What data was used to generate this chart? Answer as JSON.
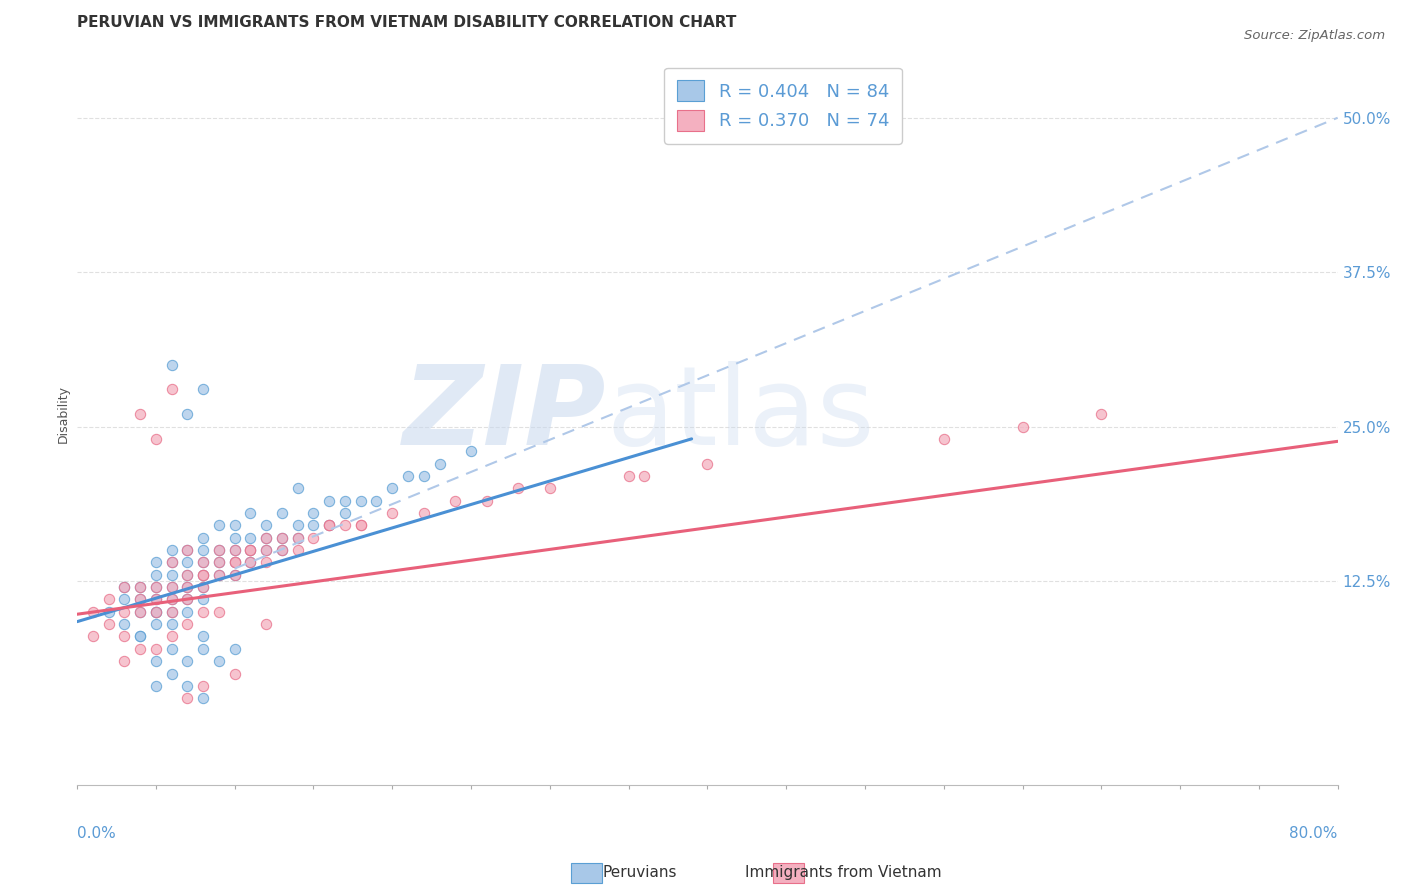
{
  "title": "PERUVIAN VS IMMIGRANTS FROM VIETNAM DISABILITY CORRELATION CHART",
  "source": "Source: ZipAtlas.com",
  "ylabel_label": "Disability",
  "yticks_vals": [
    0.125,
    0.25,
    0.375,
    0.5
  ],
  "ytick_labels": [
    "12.5%",
    "25.0%",
    "37.5%",
    "50.0%"
  ],
  "xmin": 0.0,
  "xmax": 0.8,
  "ymin": -0.04,
  "ymax": 0.56,
  "legend_blue_r": "R = 0.404",
  "legend_blue_n": "N = 84",
  "legend_pink_r": "R = 0.370",
  "legend_pink_n": "N = 74",
  "blue_color": "#a8c8e8",
  "pink_color": "#f4b0c0",
  "blue_edge_color": "#5a9fd4",
  "pink_edge_color": "#e8708a",
  "blue_line_color": "#4a90d4",
  "pink_line_color": "#e8607a",
  "dashed_line_color": "#b0c8e8",
  "watermark_zip_color": "#c8d8f0",
  "watermark_atlas_color": "#c8d8f0",
  "background_color": "#ffffff",
  "grid_color": "#e0e0e0",
  "title_fontsize": 11,
  "axis_color": "#5b9bd5",
  "tick_fontsize": 11,
  "blue_scatter_x": [
    0.02,
    0.03,
    0.03,
    0.04,
    0.04,
    0.04,
    0.05,
    0.05,
    0.05,
    0.05,
    0.05,
    0.05,
    0.06,
    0.06,
    0.06,
    0.06,
    0.06,
    0.06,
    0.07,
    0.07,
    0.07,
    0.07,
    0.07,
    0.07,
    0.08,
    0.08,
    0.08,
    0.08,
    0.08,
    0.08,
    0.09,
    0.09,
    0.09,
    0.09,
    0.1,
    0.1,
    0.1,
    0.1,
    0.1,
    0.11,
    0.11,
    0.11,
    0.11,
    0.12,
    0.12,
    0.12,
    0.13,
    0.13,
    0.13,
    0.14,
    0.14,
    0.15,
    0.15,
    0.16,
    0.16,
    0.17,
    0.17,
    0.18,
    0.19,
    0.2,
    0.21,
    0.22,
    0.23,
    0.25,
    0.14,
    0.08,
    0.06,
    0.07,
    0.05,
    0.06,
    0.07,
    0.08,
    0.09,
    0.1,
    0.04,
    0.05,
    0.06,
    0.07,
    0.08,
    0.03,
    0.04,
    0.05,
    0.06,
    0.08
  ],
  "blue_scatter_y": [
    0.1,
    0.09,
    0.11,
    0.1,
    0.12,
    0.08,
    0.12,
    0.1,
    0.13,
    0.11,
    0.14,
    0.09,
    0.1,
    0.12,
    0.13,
    0.14,
    0.11,
    0.15,
    0.11,
    0.13,
    0.12,
    0.14,
    0.15,
    0.1,
    0.12,
    0.14,
    0.13,
    0.15,
    0.16,
    0.11,
    0.13,
    0.14,
    0.15,
    0.17,
    0.13,
    0.14,
    0.15,
    0.16,
    0.17,
    0.15,
    0.16,
    0.14,
    0.18,
    0.15,
    0.16,
    0.17,
    0.16,
    0.15,
    0.18,
    0.16,
    0.17,
    0.17,
    0.18,
    0.17,
    0.19,
    0.18,
    0.19,
    0.19,
    0.19,
    0.2,
    0.21,
    0.21,
    0.22,
    0.23,
    0.2,
    0.28,
    0.3,
    0.26,
    0.06,
    0.07,
    0.06,
    0.07,
    0.06,
    0.07,
    0.08,
    0.04,
    0.05,
    0.04,
    0.03,
    0.12,
    0.11,
    0.1,
    0.09,
    0.08
  ],
  "pink_scatter_x": [
    0.01,
    0.01,
    0.02,
    0.02,
    0.03,
    0.03,
    0.03,
    0.04,
    0.04,
    0.04,
    0.05,
    0.05,
    0.05,
    0.06,
    0.06,
    0.06,
    0.07,
    0.07,
    0.07,
    0.08,
    0.08,
    0.08,
    0.09,
    0.09,
    0.1,
    0.1,
    0.1,
    0.11,
    0.11,
    0.12,
    0.12,
    0.13,
    0.13,
    0.14,
    0.15,
    0.16,
    0.17,
    0.18,
    0.2,
    0.22,
    0.24,
    0.26,
    0.28,
    0.3,
    0.35,
    0.36,
    0.4,
    0.55,
    0.6,
    0.65,
    0.06,
    0.07,
    0.08,
    0.09,
    0.1,
    0.11,
    0.12,
    0.14,
    0.16,
    0.18,
    0.03,
    0.04,
    0.05,
    0.06,
    0.07,
    0.08,
    0.09,
    0.04,
    0.05,
    0.06,
    0.07,
    0.08,
    0.1,
    0.12
  ],
  "pink_scatter_y": [
    0.1,
    0.08,
    0.09,
    0.11,
    0.1,
    0.12,
    0.08,
    0.11,
    0.1,
    0.12,
    0.1,
    0.11,
    0.12,
    0.11,
    0.12,
    0.1,
    0.12,
    0.13,
    0.11,
    0.12,
    0.13,
    0.14,
    0.13,
    0.14,
    0.13,
    0.14,
    0.15,
    0.14,
    0.15,
    0.14,
    0.15,
    0.15,
    0.16,
    0.16,
    0.16,
    0.17,
    0.17,
    0.17,
    0.18,
    0.18,
    0.19,
    0.19,
    0.2,
    0.2,
    0.21,
    0.21,
    0.22,
    0.24,
    0.25,
    0.26,
    0.14,
    0.15,
    0.13,
    0.15,
    0.14,
    0.15,
    0.16,
    0.15,
    0.17,
    0.17,
    0.06,
    0.07,
    0.07,
    0.08,
    0.09,
    0.1,
    0.1,
    0.26,
    0.24,
    0.28,
    0.03,
    0.04,
    0.05,
    0.09
  ],
  "blue_trend_x": [
    0.0,
    0.39
  ],
  "blue_trend_y": [
    0.092,
    0.24
  ],
  "pink_trend_x": [
    0.0,
    0.8
  ],
  "pink_trend_y": [
    0.098,
    0.238
  ],
  "dashed_trend_x": [
    0.1,
    0.8
  ],
  "dashed_trend_y": [
    0.135,
    0.5
  ]
}
